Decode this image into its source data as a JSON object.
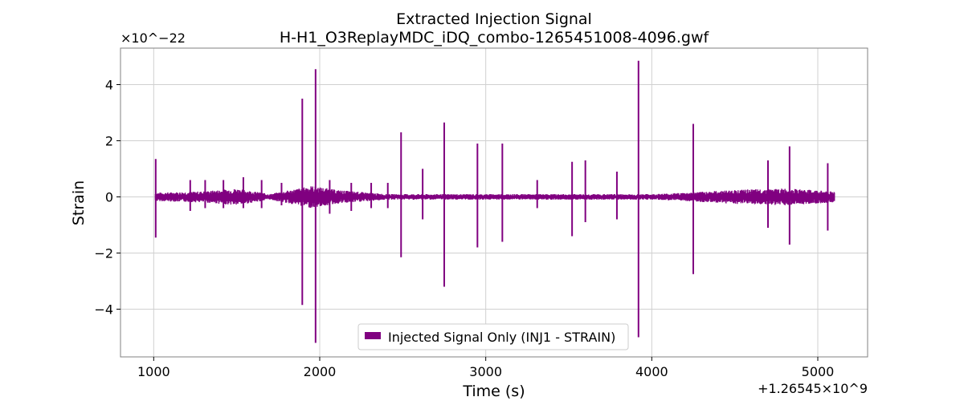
{
  "chart_data": {
    "type": "line",
    "title": "Extracted Injection Signal",
    "subtitle": "H-H1_O3ReplayMDC_iDQ_combo-1265451008-4096.gwf",
    "xlabel": "Time (s)",
    "ylabel": "Strain",
    "x_offset_label": "+1.26545×10^9",
    "y_scale_label": "×10^−22",
    "xlim": [
      800,
      5300
    ],
    "ylim": [
      -5.7,
      5.3
    ],
    "x_ticks": [
      1000,
      2000,
      3000,
      4000,
      5000
    ],
    "x_tick_labels": [
      "1000",
      "2000",
      "3000",
      "4000",
      "5000"
    ],
    "y_ticks": [
      -4,
      -2,
      0,
      2,
      4
    ],
    "y_tick_labels": [
      "−4",
      "−2",
      "0",
      "2",
      "4"
    ],
    "grid": true,
    "legend_position": "lower-center",
    "series": [
      {
        "name": "Injected Signal Only (INJ1 - STRAIN)",
        "color": "#800080",
        "x_range": [
          1010,
          5100
        ],
        "baseline_envelope": [
          {
            "x": 1010,
            "lo": -0.15,
            "hi": 0.15
          },
          {
            "x": 1300,
            "lo": -0.2,
            "hi": 0.2
          },
          {
            "x": 1500,
            "lo": -0.3,
            "hi": 0.3
          },
          {
            "x": 1700,
            "lo": -0.1,
            "hi": 0.1
          },
          {
            "x": 1950,
            "lo": -0.4,
            "hi": 0.4
          },
          {
            "x": 2100,
            "lo": -0.25,
            "hi": 0.25
          },
          {
            "x": 2400,
            "lo": -0.1,
            "hi": 0.1
          },
          {
            "x": 2700,
            "lo": -0.1,
            "hi": 0.1
          },
          {
            "x": 3000,
            "lo": -0.1,
            "hi": 0.1
          },
          {
            "x": 3500,
            "lo": -0.1,
            "hi": 0.1
          },
          {
            "x": 4000,
            "lo": -0.1,
            "hi": 0.1
          },
          {
            "x": 4200,
            "lo": -0.15,
            "hi": 0.15
          },
          {
            "x": 4500,
            "lo": -0.25,
            "hi": 0.25
          },
          {
            "x": 4800,
            "lo": -0.3,
            "hi": 0.3
          },
          {
            "x": 5100,
            "lo": -0.2,
            "hi": 0.2
          }
        ],
        "spikes": [
          {
            "x": 1012,
            "hi": 1.35,
            "lo": -1.45
          },
          {
            "x": 1220,
            "hi": 0.6,
            "lo": -0.5
          },
          {
            "x": 1310,
            "hi": 0.6,
            "lo": -0.4
          },
          {
            "x": 1420,
            "hi": 0.6,
            "lo": -0.4
          },
          {
            "x": 1540,
            "hi": 0.7,
            "lo": -0.4
          },
          {
            "x": 1650,
            "hi": 0.6,
            "lo": -0.4
          },
          {
            "x": 1770,
            "hi": 0.5,
            "lo": -0.3
          },
          {
            "x": 1895,
            "hi": 3.5,
            "lo": -3.85
          },
          {
            "x": 1975,
            "hi": 4.55,
            "lo": -5.2
          },
          {
            "x": 2060,
            "hi": 0.6,
            "lo": -0.6
          },
          {
            "x": 2190,
            "hi": 0.5,
            "lo": -0.5
          },
          {
            "x": 2310,
            "hi": 0.5,
            "lo": -0.4
          },
          {
            "x": 2410,
            "hi": 0.5,
            "lo": -0.4
          },
          {
            "x": 2490,
            "hi": 2.3,
            "lo": -2.15
          },
          {
            "x": 2620,
            "hi": 1.0,
            "lo": -0.8
          },
          {
            "x": 2750,
            "hi": 2.65,
            "lo": -3.2
          },
          {
            "x": 2950,
            "hi": 1.9,
            "lo": -1.8
          },
          {
            "x": 3100,
            "hi": 1.9,
            "lo": -1.6
          },
          {
            "x": 3310,
            "hi": 0.6,
            "lo": -0.4
          },
          {
            "x": 3520,
            "hi": 1.25,
            "lo": -1.4
          },
          {
            "x": 3600,
            "hi": 1.3,
            "lo": -0.9
          },
          {
            "x": 3790,
            "hi": 0.9,
            "lo": -0.8
          },
          {
            "x": 3920,
            "hi": 4.85,
            "lo": -5.0
          },
          {
            "x": 4250,
            "hi": 2.6,
            "lo": -2.75
          },
          {
            "x": 4700,
            "hi": 1.3,
            "lo": -1.1
          },
          {
            "x": 4830,
            "hi": 1.8,
            "lo": -1.7
          },
          {
            "x": 5060,
            "hi": 1.2,
            "lo": -1.2
          }
        ]
      }
    ]
  }
}
